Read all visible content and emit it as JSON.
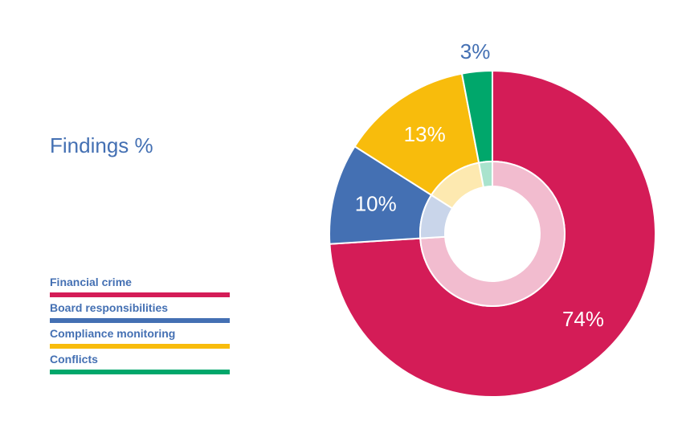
{
  "chart_data": {
    "type": "pie",
    "title": "Findings %",
    "categories": [
      "Financial crime",
      "Board responsibilities",
      "Compliance monitoring",
      "Conflicts"
    ],
    "values": [
      74,
      10,
      13,
      3
    ],
    "data_labels": [
      "74%",
      "10%",
      "13%",
      "3%"
    ],
    "colors": [
      "#d41c57",
      "#4470b3",
      "#f8bc0c",
      "#00a76b"
    ],
    "inner_colors": [
      "#f2bccf",
      "#c9d5ea",
      "#fde9b0",
      "#a9e3cd"
    ],
    "legend_position": "bottom-left",
    "label_colors": [
      "#ffffff",
      "#ffffff",
      "#ffffff",
      "#4470b3"
    ]
  }
}
